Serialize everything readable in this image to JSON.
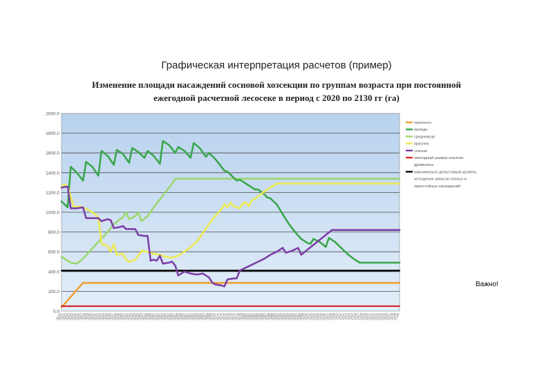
{
  "slide": {
    "title": "Графическая интерпретация расчетов (пример)",
    "subtitle_line1": "Изменение площади насаждений сосновой хозсекции по группам возраста при постоянной",
    "subtitle_line2": "ежегодной расчетной лесосеке в период с 2020 по 2130 гг (га)",
    "note": "Важно!"
  },
  "chart_data": {
    "type": "line",
    "title": "",
    "xlabel": "",
    "ylabel": "",
    "ylim": [
      0,
      2000
    ],
    "yticks": [
      "0.0",
      "200.0",
      "400.0",
      "600.0",
      "800.0",
      "1000.0",
      "1200.0",
      "1400.0",
      "1600.0",
      "1800.0",
      "2000.0"
    ],
    "xlim": [
      2020,
      2130
    ],
    "x_tick_count": 111,
    "grid": true,
    "legend_position": "right",
    "series": [
      {
        "name": "наполеон",
        "color": "#f0a030",
        "points": [
          [
            2020,
            40
          ],
          [
            2027,
            285
          ],
          [
            2130,
            285
          ]
        ]
      },
      {
        "name": "молодн",
        "color": "#3aa64a",
        "points": [
          [
            2020,
            1110
          ],
          [
            2022,
            1050
          ],
          [
            2023,
            1460
          ],
          [
            2025,
            1400
          ],
          [
            2027,
            1320
          ],
          [
            2028,
            1510
          ],
          [
            2030,
            1460
          ],
          [
            2032,
            1370
          ],
          [
            2033,
            1620
          ],
          [
            2035,
            1570
          ],
          [
            2037,
            1480
          ],
          [
            2038,
            1630
          ],
          [
            2040,
            1590
          ],
          [
            2042,
            1500
          ],
          [
            2043,
            1650
          ],
          [
            2045,
            1610
          ],
          [
            2047,
            1550
          ],
          [
            2048,
            1620
          ],
          [
            2050,
            1570
          ],
          [
            2052,
            1490
          ],
          [
            2053,
            1720
          ],
          [
            2055,
            1680
          ],
          [
            2057,
            1600
          ],
          [
            2058,
            1660
          ],
          [
            2060,
            1620
          ],
          [
            2062,
            1550
          ],
          [
            2063,
            1700
          ],
          [
            2065,
            1650
          ],
          [
            2067,
            1560
          ],
          [
            2068,
            1600
          ],
          [
            2070,
            1540
          ],
          [
            2072,
            1460
          ],
          [
            2073,
            1420
          ],
          [
            2074,
            1410
          ],
          [
            2076,
            1350
          ],
          [
            2077,
            1320
          ],
          [
            2078,
            1330
          ],
          [
            2080,
            1290
          ],
          [
            2082,
            1250
          ],
          [
            2083,
            1230
          ],
          [
            2084,
            1230
          ],
          [
            2086,
            1180
          ],
          [
            2087,
            1150
          ],
          [
            2088,
            1140
          ],
          [
            2090,
            1080
          ],
          [
            2092,
            980
          ],
          [
            2094,
            880
          ],
          [
            2096,
            800
          ],
          [
            2098,
            730
          ],
          [
            2100,
            690
          ],
          [
            2101,
            680
          ],
          [
            2102,
            730
          ],
          [
            2104,
            700
          ],
          [
            2106,
            650
          ],
          [
            2107,
            740
          ],
          [
            2109,
            700
          ],
          [
            2111,
            640
          ],
          [
            2113,
            580
          ],
          [
            2115,
            530
          ],
          [
            2117,
            490
          ],
          [
            2130,
            490
          ]
        ]
      },
      {
        "name": "средневозр",
        "color": "#9cd66e",
        "points": [
          [
            2020,
            550
          ],
          [
            2022,
            510
          ],
          [
            2023,
            490
          ],
          [
            2025,
            480
          ],
          [
            2027,
            530
          ],
          [
            2029,
            600
          ],
          [
            2032,
            700
          ],
          [
            2035,
            800
          ],
          [
            2037,
            880
          ],
          [
            2039,
            930
          ],
          [
            2040,
            950
          ],
          [
            2041,
            1000
          ],
          [
            2042,
            930
          ],
          [
            2044,
            960
          ],
          [
            2045,
            1000
          ],
          [
            2046,
            910
          ],
          [
            2048,
            960
          ],
          [
            2050,
            1050
          ],
          [
            2052,
            1130
          ],
          [
            2054,
            1210
          ],
          [
            2056,
            1290
          ],
          [
            2057,
            1340
          ],
          [
            2130,
            1340
          ]
        ]
      },
      {
        "name": "приспев",
        "color": "#ecea50",
        "points": [
          [
            2020,
            1260
          ],
          [
            2021,
            1280
          ],
          [
            2022,
            1260
          ],
          [
            2024,
            1050
          ],
          [
            2026,
            1060
          ],
          [
            2027,
            1050
          ],
          [
            2030,
            1000
          ],
          [
            2032,
            950
          ],
          [
            2033,
            680
          ],
          [
            2035,
            660
          ],
          [
            2036,
            600
          ],
          [
            2037,
            680
          ],
          [
            2038,
            570
          ],
          [
            2040,
            580
          ],
          [
            2041,
            520
          ],
          [
            2042,
            500
          ],
          [
            2044,
            520
          ],
          [
            2045,
            560
          ],
          [
            2046,
            610
          ],
          [
            2048,
            600
          ],
          [
            2050,
            580
          ],
          [
            2052,
            570
          ],
          [
            2054,
            550
          ],
          [
            2056,
            540
          ],
          [
            2058,
            560
          ],
          [
            2060,
            600
          ],
          [
            2062,
            650
          ],
          [
            2064,
            700
          ],
          [
            2066,
            790
          ],
          [
            2068,
            880
          ],
          [
            2070,
            960
          ],
          [
            2072,
            1030
          ],
          [
            2073,
            1080
          ],
          [
            2074,
            1050
          ],
          [
            2075,
            1100
          ],
          [
            2076,
            1060
          ],
          [
            2077,
            1050
          ],
          [
            2078,
            1040
          ],
          [
            2079,
            1090
          ],
          [
            2080,
            1100
          ],
          [
            2081,
            1060
          ],
          [
            2082,
            1120
          ],
          [
            2084,
            1160
          ],
          [
            2086,
            1210
          ],
          [
            2088,
            1250
          ],
          [
            2090,
            1290
          ],
          [
            2130,
            1290
          ]
        ]
      },
      {
        "name": "спелые",
        "color": "#7d3fa8",
        "points": [
          [
            2020,
            1250
          ],
          [
            2022,
            1260
          ],
          [
            2023,
            1040
          ],
          [
            2025,
            1040
          ],
          [
            2027,
            1050
          ],
          [
            2028,
            940
          ],
          [
            2030,
            940
          ],
          [
            2032,
            940
          ],
          [
            2033,
            910
          ],
          [
            2035,
            930
          ],
          [
            2036,
            920
          ],
          [
            2037,
            840
          ],
          [
            2039,
            850
          ],
          [
            2040,
            860
          ],
          [
            2041,
            830
          ],
          [
            2043,
            830
          ],
          [
            2044,
            830
          ],
          [
            2045,
            770
          ],
          [
            2047,
            760
          ],
          [
            2048,
            760
          ],
          [
            2049,
            510
          ],
          [
            2050,
            520
          ],
          [
            2051,
            510
          ],
          [
            2052,
            560
          ],
          [
            2053,
            480
          ],
          [
            2055,
            490
          ],
          [
            2056,
            500
          ],
          [
            2057,
            460
          ],
          [
            2058,
            360
          ],
          [
            2060,
            400
          ],
          [
            2062,
            380
          ],
          [
            2064,
            370
          ],
          [
            2066,
            380
          ],
          [
            2068,
            340
          ],
          [
            2069,
            290
          ],
          [
            2070,
            270
          ],
          [
            2072,
            260
          ],
          [
            2073,
            250
          ],
          [
            2074,
            320
          ],
          [
            2076,
            330
          ],
          [
            2077,
            330
          ],
          [
            2078,
            410
          ],
          [
            2080,
            440
          ],
          [
            2082,
            470
          ],
          [
            2084,
            500
          ],
          [
            2086,
            530
          ],
          [
            2088,
            570
          ],
          [
            2090,
            600
          ],
          [
            2092,
            640
          ],
          [
            2093,
            590
          ],
          [
            2095,
            610
          ],
          [
            2097,
            640
          ],
          [
            2098,
            570
          ],
          [
            2100,
            620
          ],
          [
            2102,
            670
          ],
          [
            2104,
            720
          ],
          [
            2106,
            770
          ],
          [
            2108,
            820
          ],
          [
            2130,
            820
          ]
        ]
      },
      {
        "name": "ежегодный размер изъятия древесины",
        "color": "#d42a2a",
        "points": [
          [
            2020,
            50
          ],
          [
            2130,
            50
          ]
        ]
      },
      {
        "name": "максимально допустимый уровень истощения запасов спелых и перестойных насаждений",
        "color": "#000000",
        "points": [
          [
            2020,
            410
          ],
          [
            2130,
            410
          ]
        ]
      }
    ]
  }
}
